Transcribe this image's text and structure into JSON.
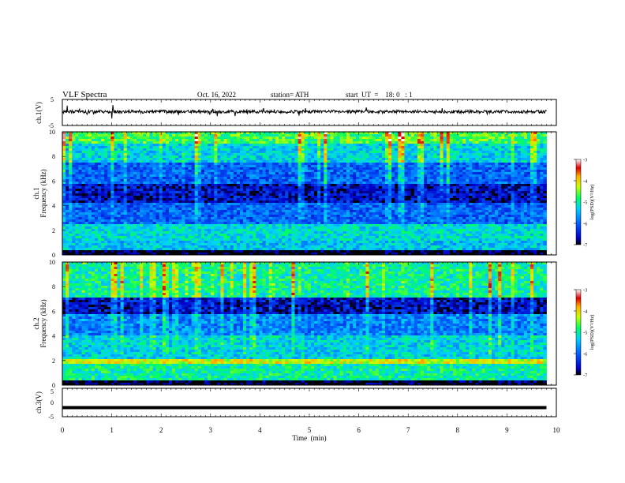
{
  "header": {
    "title": "VLF  Spectra",
    "date": "Oct. 16, 2022",
    "station": "station= ATH",
    "start_ut": "start  UT  =    18: 0   : 1"
  },
  "chart_data": [
    {
      "type": "line",
      "name": "ch1-waveform",
      "ylabel": "ch.1(V)",
      "ylim": [
        -5,
        5
      ],
      "ytick_labels": [
        "5",
        "-5"
      ],
      "xlim": [
        0,
        10
      ],
      "data_extent_min": [
        0,
        9.8
      ],
      "baseline_v": 0.3,
      "noise_amplitude_v": 0.6
    },
    {
      "type": "heatmap",
      "name": "ch1-spectrogram",
      "ylabel": "ch.1\nFrequency  (kHz)",
      "ylim": [
        0,
        10
      ],
      "ytick_labels": [
        "0",
        "2",
        "4",
        "6",
        "8",
        "10"
      ],
      "xlim": [
        0,
        10
      ],
      "data_extent_min": [
        0,
        9.8
      ],
      "colorbar": {
        "label": "log(PSD)(V²/Hz)",
        "range": [
          -7,
          -3
        ],
        "tick_labels": [
          "-3",
          "-4",
          "-5",
          "-6",
          "-7"
        ]
      },
      "bands_khz_approx": [
        {
          "from": 0.0,
          "to": 0.4,
          "level": -7.0
        },
        {
          "from": 0.4,
          "to": 1.2,
          "level": -5.4
        },
        {
          "from": 1.2,
          "to": 2.5,
          "level": -5.2
        },
        {
          "from": 2.5,
          "to": 4.2,
          "level": -6.0
        },
        {
          "from": 4.2,
          "to": 5.8,
          "level": -6.6
        },
        {
          "from": 5.8,
          "to": 7.5,
          "level": -6.0
        },
        {
          "from": 7.5,
          "to": 9.0,
          "level": -5.3
        },
        {
          "from": 9.0,
          "to": 10.0,
          "level": -4.7
        }
      ]
    },
    {
      "type": "heatmap",
      "name": "ch2-spectrogram",
      "ylabel": "ch.2\nFrequency  (kHz)",
      "ylim": [
        0,
        10
      ],
      "ytick_labels": [
        "0",
        "2",
        "4",
        "6",
        "8",
        "10"
      ],
      "xlim": [
        0,
        10
      ],
      "data_extent_min": [
        0,
        9.8
      ],
      "colorbar": {
        "label": "log(PSD)(V²/Hz)",
        "range": [
          -7,
          -3
        ],
        "tick_labels": [
          "-3",
          "-4",
          "-5",
          "-6",
          "-7"
        ]
      },
      "bands_khz_approx": [
        {
          "from": 0.0,
          "to": 0.3,
          "level": -7.0
        },
        {
          "from": 0.3,
          "to": 1.8,
          "level": -5.0
        },
        {
          "from": 1.8,
          "to": 2.2,
          "level": -4.2
        },
        {
          "from": 2.2,
          "to": 4.0,
          "level": -5.3
        },
        {
          "from": 4.0,
          "to": 5.8,
          "level": -5.8
        },
        {
          "from": 5.8,
          "to": 7.2,
          "level": -6.6
        },
        {
          "from": 7.2,
          "to": 10.0,
          "level": -5.0
        }
      ]
    },
    {
      "type": "line",
      "name": "ch3-waveform",
      "ylabel": "ch.3(V)",
      "ylim": [
        -5,
        5
      ],
      "ytick_labels": [
        "5",
        "0",
        "-5"
      ],
      "xlim": [
        0,
        10
      ],
      "data_extent_min": [
        0,
        9.8
      ],
      "baseline_v": -1.8
    }
  ],
  "xaxis": {
    "label": "Time  (min)",
    "tick_labels": [
      "0",
      "1",
      "2",
      "3",
      "4",
      "5",
      "6",
      "7",
      "8",
      "9",
      "10"
    ]
  },
  "colors": {
    "colormap": [
      "#000000",
      "#0000c8",
      "#0060ff",
      "#00d0ff",
      "#00ff60",
      "#c8ff00",
      "#ffb000",
      "#e00000",
      "#ffffff"
    ],
    "waveform": "#000000"
  }
}
